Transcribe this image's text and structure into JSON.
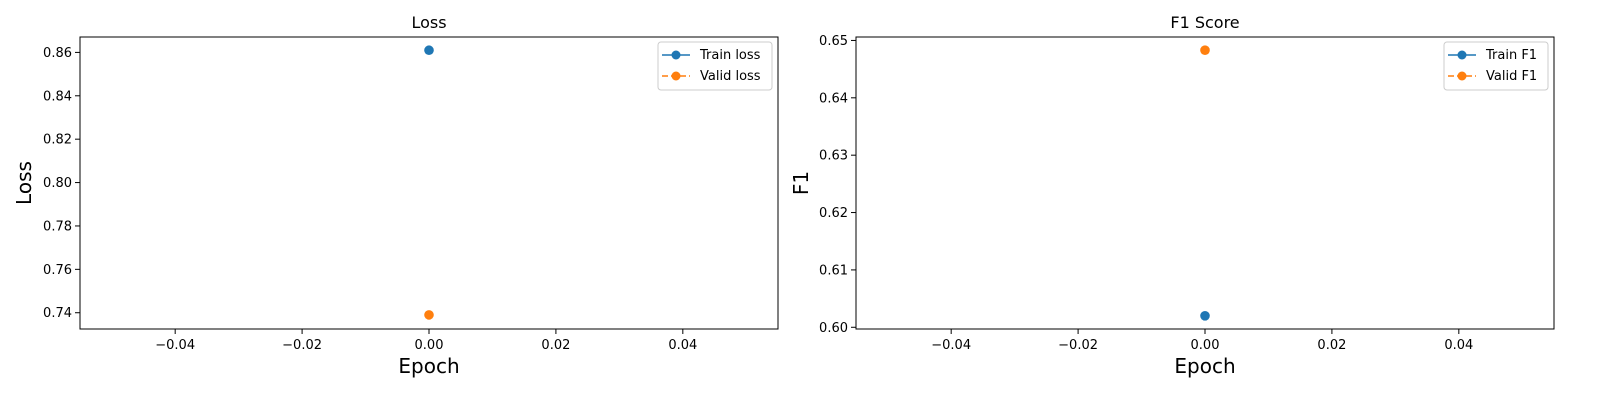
{
  "colors": {
    "train": "#1f77b4",
    "valid": "#ff7f0e"
  },
  "chart_data": [
    {
      "type": "line",
      "title": "Loss",
      "xlabel": "Epoch",
      "ylabel": "Loss",
      "xlim": [
        -0.055,
        0.055
      ],
      "ylim": [
        0.7325,
        0.8671
      ],
      "xticks": [
        -0.04,
        -0.02,
        0.0,
        0.02,
        0.04
      ],
      "xtick_labels": [
        "−0.04",
        "−0.02",
        "0.00",
        "0.02",
        "0.04"
      ],
      "yticks": [
        0.74,
        0.76,
        0.78,
        0.8,
        0.82,
        0.84,
        0.86
      ],
      "ytick_labels": [
        "0.74",
        "0.76",
        "0.78",
        "0.80",
        "0.82",
        "0.84",
        "0.86"
      ],
      "grid": false,
      "legend_position": "top-right",
      "series": [
        {
          "name": "Train loss",
          "color": "#1f77b4",
          "linestyle": "solid",
          "marker": "circle",
          "x": [
            0
          ],
          "y": [
            0.861
          ]
        },
        {
          "name": "Valid loss",
          "color": "#ff7f0e",
          "linestyle": "dashed",
          "marker": "circle",
          "x": [
            0
          ],
          "y": [
            0.739
          ]
        }
      ]
    },
    {
      "type": "line",
      "title": "F1 Score",
      "xlabel": "Epoch",
      "ylabel": "F1",
      "xlim": [
        -0.055,
        0.055
      ],
      "ylim": [
        0.5997,
        0.6506
      ],
      "xticks": [
        -0.04,
        -0.02,
        0.0,
        0.02,
        0.04
      ],
      "xtick_labels": [
        "−0.04",
        "−0.02",
        "0.00",
        "0.02",
        "0.04"
      ],
      "yticks": [
        0.6,
        0.61,
        0.62,
        0.63,
        0.64,
        0.65
      ],
      "ytick_labels": [
        "0.60",
        "0.61",
        "0.62",
        "0.63",
        "0.64",
        "0.65"
      ],
      "grid": false,
      "legend_position": "top-right",
      "series": [
        {
          "name": "Train F1",
          "color": "#1f77b4",
          "linestyle": "solid",
          "marker": "circle",
          "x": [
            0
          ],
          "y": [
            0.602
          ]
        },
        {
          "name": "Valid F1",
          "color": "#ff7f0e",
          "linestyle": "dashed",
          "marker": "circle",
          "x": [
            0
          ],
          "y": [
            0.6483
          ]
        }
      ]
    }
  ]
}
